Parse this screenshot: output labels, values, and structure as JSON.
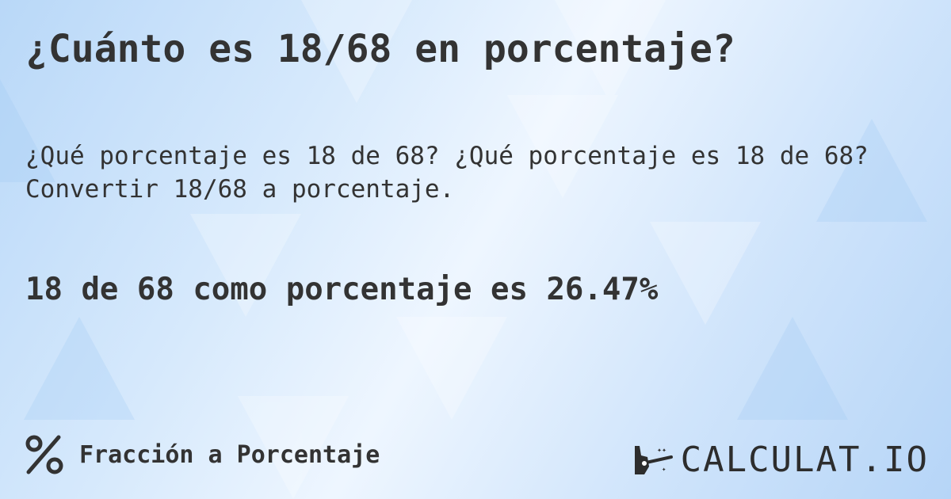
{
  "title": "¿Cuánto es 18/68 en porcentaje?",
  "description": [
    "¿Qué porcentaje es 18 de 68? ¿Qué porcentaje es 18 de 68?",
    "Convertir 18/68 a porcentaje."
  ],
  "result": "18 de 68 como porcentaje es 26.47%",
  "footer": {
    "icon": "percent-icon",
    "label": "Fracción a Porcentaje"
  },
  "logo": {
    "icon": "magic-hand-icon",
    "text": "CALCULAT.IO"
  },
  "colors": {
    "text": "#333333",
    "background": "#cfe4fb"
  }
}
